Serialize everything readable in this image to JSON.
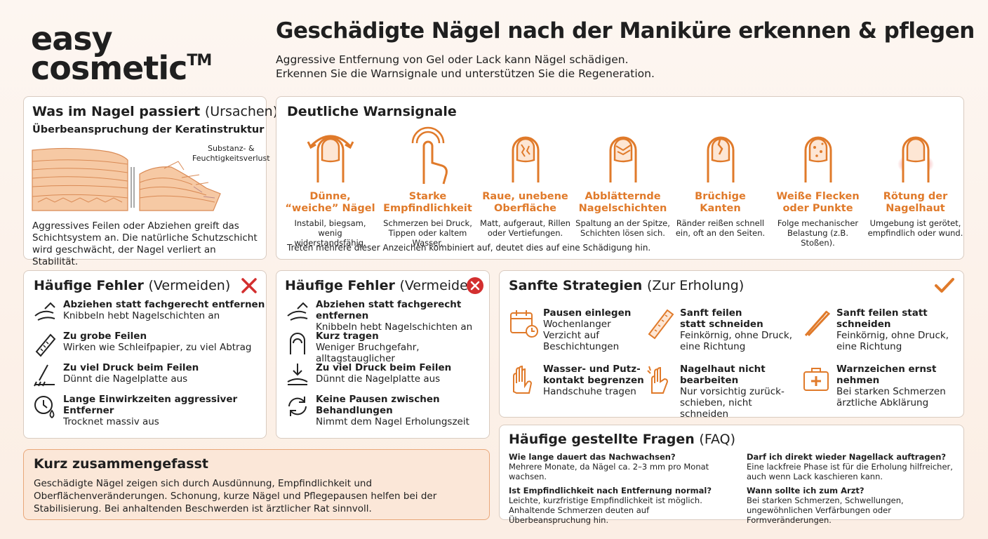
{
  "brand": {
    "line1": "easy",
    "line2": "cosmetic",
    "mark": "TM"
  },
  "header": {
    "title": "Geschädigte Nägel nach der Maniküre erkennen & pflegen",
    "subtitle": "Aggressive Entfernung von Gel oder Lack kann Nägel schädigen.\nErkennen Sie die Warnsignale und unterstützen Sie die Regeneration."
  },
  "causes": {
    "title": "Was im Nagel passiert",
    "title_suffix": "(Ursachen)",
    "subtitle": "Überbeanspruchung der Keratinstruktur",
    "diagram_label": "Substanz- &\nFeuchtigkeitsverlust",
    "text": "Aggressives Feilen oder Abziehen greift das Schichtsystem an. Die natürliche Schutzschicht wird geschwächt, der Nagel verliert an Stabilität."
  },
  "warnings": {
    "title": "Deutliche Warnsignale",
    "items": [
      {
        "title": "Dünne,\n“weiche” Nägel",
        "text": "Instabil, biegsam, wenig widerstandsfähig."
      },
      {
        "title": "Starke\nEmpfindlichkeit",
        "text": "Schmerzen bei Druck, Tippen oder kaltem Wasser."
      },
      {
        "title": "Raue, unebene\nOberfläche",
        "text": "Matt, aufgeraut, Rillen oder Vertiefungen."
      },
      {
        "title": "Abblätternde\nNagelschichten",
        "text": "Spaltung an der Spitze, Schichten lösen sich."
      },
      {
        "title": "Brüchige\nKanten",
        "text": "Ränder reißen schnell ein, oft an den Seiten."
      },
      {
        "title": "Weiße Flecken\noder Punkte",
        "text": "Folge mechanischer Belastung (z.B. Stoßen)."
      },
      {
        "title": "Rötung der\nNagelhaut",
        "text": "Umgebung ist gerötet, empfindlich oder wund."
      }
    ],
    "note": "Treten mehrere dieser Anzeichen kombiniert auf, deutet dies auf eine Schädigung hin."
  },
  "mistakes_left": {
    "title": "Häufige Fehler",
    "title_suffix": "(Vermeiden)",
    "items": [
      {
        "title": "Abziehen statt fachgerecht entfernen",
        "text": "Knibbeln hebt Nagelschichten an"
      },
      {
        "title": "Zu grobe Feilen",
        "text": "Wirken wie Schleifpapier, zu viel Abtrag"
      },
      {
        "title": "Zu viel Druck beim Feilen",
        "text": "Dünnt die Nagelplatte aus"
      },
      {
        "title": "Lange Einwirkzeiten aggressiver Entferner",
        "text": "Trocknet massiv aus"
      }
    ]
  },
  "mistakes_right": {
    "title": "Häufige Fehler",
    "title_suffix": "(Vermeiden)",
    "items": [
      {
        "title": "Abziehen statt fachgerecht entfernen",
        "text": "Knibbeln hebt Nagelschichten an"
      },
      {
        "title": "Kurz tragen",
        "text": "Weniger Bruchgefahr, alltagstauglicher"
      },
      {
        "title": "Zu viel Druck beim Feilen",
        "text": "Dünnt die Nagelplatte aus"
      },
      {
        "title": "Keine Pausen zwischen\nBehandlungen",
        "text": "Nimmt dem Nagel Erholungszeit"
      }
    ]
  },
  "strategies": {
    "title": "Sanfte Strategien",
    "title_suffix": "(Zur Erholung)",
    "items": [
      {
        "title": "Pausen einlegen",
        "text": "Wochenlanger\nVerzicht auf\nBeschichtungen"
      },
      {
        "title": "Sanft feilen\nstatt schneiden",
        "text": "Feinkörnig, ohne Druck,\neine Richtung"
      },
      {
        "title": "Sanft feilen statt\nschneiden",
        "text": "Feinkörnig, ohne Druck,\neine Richtung"
      },
      {
        "title": "Wasser- und Putz-\nkontakt begrenzen",
        "text": "Handschuhe tragen"
      },
      {
        "title": "Nagelhaut nicht\nbearbeiten",
        "text": "Nur vorsichtig zurück-\nschieben, nicht schneiden"
      },
      {
        "title": "Warnzeichen ernst nehmen",
        "text": "Bei starken Schmerzen\närztliche Abklärung"
      }
    ]
  },
  "faq": {
    "title": "Häufige gestellte Fragen",
    "title_suffix": "(FAQ)",
    "items": [
      {
        "q": "Wie lange dauert das Nachwachsen?",
        "a": "Mehrere Monate, da Nägel ca. 2–3 mm pro Monat wachsen."
      },
      {
        "q": "Ist Empfindlichkeit nach Entfernung normal?",
        "a": "Leichte, kurzfristige Empfindlichkeit ist möglich. Anhaltende Schmerzen deuten auf Überbeanspruchung hin."
      },
      {
        "q": "Darf ich direkt wieder Nagellack auftragen?",
        "a": "Eine lackfreie Phase ist für die Erholung hilfreicher, auch wenn Lack kaschieren kann."
      },
      {
        "q": "Wann sollte ich zum Arzt?",
        "a": "Bei starken Schmerzen, Schwellungen, ungewöhnlichen Verfärbungen oder Formveränderungen."
      }
    ]
  },
  "summary": {
    "title": "Kurz zusammengefasst",
    "text": "Geschädigte Nägel zeigen sich durch Ausdünnung, Empfindlichkeit und Oberflächenveränderungen. Schonung, kurze Nägel und Pflegepausen helfen bei der Stabilisierung. Bei anhaltenden Beschwerden ist ärztlicher Rat sinnvoll."
  }
}
